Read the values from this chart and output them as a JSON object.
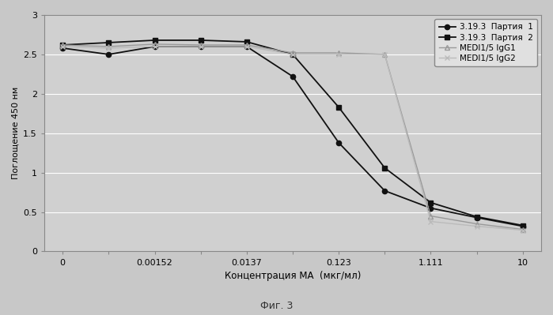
{
  "series": [
    {
      "label": "3.19.3  Партия  1",
      "color": "#111111",
      "marker": "o",
      "markersize": 4.5,
      "linewidth": 1.3,
      "linestyle": "-",
      "fillstyle": "full",
      "x": [
        0,
        1,
        2,
        3,
        4,
        5,
        6,
        7,
        8,
        9,
        10
      ],
      "y": [
        2.58,
        2.5,
        2.6,
        2.6,
        2.6,
        2.22,
        1.38,
        0.77,
        0.55,
        0.43,
        0.32
      ]
    },
    {
      "label": "3.19.3  Партия  2",
      "color": "#111111",
      "marker": "s",
      "markersize": 4.5,
      "linewidth": 1.3,
      "linestyle": "-",
      "fillstyle": "full",
      "x": [
        0,
        1,
        2,
        3,
        4,
        5,
        6,
        7,
        8,
        9,
        10
      ],
      "y": [
        2.62,
        2.65,
        2.68,
        2.68,
        2.66,
        2.5,
        1.83,
        1.06,
        0.62,
        0.44,
        0.33
      ]
    },
    {
      "label": "MEDI1/5 IgG1",
      "color": "#999999",
      "marker": "^",
      "markersize": 4.5,
      "linewidth": 1.0,
      "linestyle": "-",
      "fillstyle": "none",
      "x": [
        0,
        1,
        2,
        3,
        4,
        5,
        6,
        7,
        8,
        9,
        10
      ],
      "y": [
        2.62,
        2.6,
        2.63,
        2.62,
        2.62,
        2.52,
        2.52,
        2.5,
        0.45,
        0.35,
        0.28
      ]
    },
    {
      "label": "MEDI1/5 IgG2",
      "color": "#bbbbbb",
      "marker": "x",
      "markersize": 4.5,
      "linewidth": 1.0,
      "linestyle": "-",
      "fillstyle": "none",
      "x": [
        0,
        1,
        2,
        3,
        4,
        5,
        6,
        7,
        8,
        9,
        10
      ],
      "y": [
        2.6,
        2.58,
        2.6,
        2.6,
        2.6,
        2.5,
        2.5,
        2.5,
        0.38,
        0.32,
        0.27
      ]
    }
  ],
  "x_tick_positions": [
    0,
    2,
    4,
    6,
    8,
    10
  ],
  "x_tick_labels": [
    "0",
    "0.00152",
    "0.0137",
    "0.123",
    "1.111",
    "10"
  ],
  "ylabel": "Поглощение 450 нм",
  "xlabel": "Концентрация МА  (мкг/мл)",
  "caption": "Фиг. 3",
  "ylim": [
    0,
    3.0
  ],
  "yticks": [
    0,
    0.5,
    1.0,
    1.5,
    2.0,
    2.5,
    3.0
  ],
  "ytick_labels": [
    "0",
    "0.5",
    "1",
    "1.5",
    "2",
    "2.5",
    "3"
  ],
  "bg_color": "#c8c8c8",
  "plot_bg_color": "#d0d0d0",
  "legend_bg_color": "#e0e0e0",
  "grid_color": "#b0b0b0"
}
